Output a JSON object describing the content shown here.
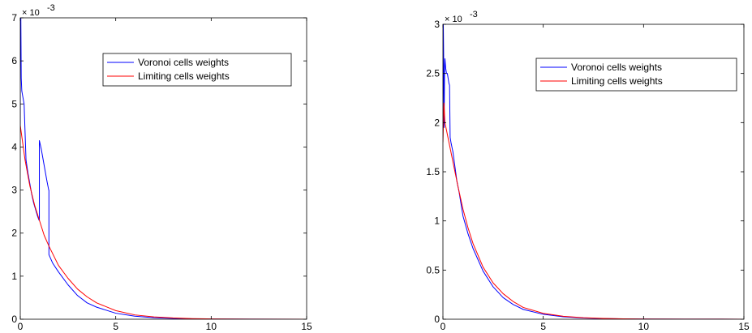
{
  "chart_data": [
    {
      "type": "line",
      "title": "",
      "xlabel": "",
      "ylabel": "",
      "exponent_label": "× 10",
      "exponent_power": "-3",
      "xlim": [
        0,
        15
      ],
      "ylim": [
        0,
        7
      ],
      "xticks": [
        0,
        5,
        10,
        15
      ],
      "yticks": [
        0,
        1,
        2,
        3,
        4,
        5,
        6,
        7
      ],
      "x_tick_labels": [
        "0",
        "5",
        "10",
        "15"
      ],
      "y_tick_labels": [
        "0",
        "1",
        "2",
        "3",
        "4",
        "5",
        "6",
        "7"
      ],
      "grid": false,
      "legend_position": "top-right",
      "series": [
        {
          "name": "Voronoi cells weights",
          "color": "#0000ff",
          "x": [
            0,
            0,
            0.03,
            0.05,
            0.08,
            0.12,
            0.2,
            0.3,
            0.4,
            0.5,
            0.6,
            0.7,
            0.8,
            0.9,
            0.98,
            1.0,
            1.0,
            1.1,
            1.2,
            1.3,
            1.4,
            1.49,
            1.5,
            1.5,
            1.7,
            2.0,
            2.5,
            3.0,
            3.5,
            4.0,
            5.0,
            6.0,
            7.0,
            8.0,
            9.0,
            10.0,
            12.0,
            15.0
          ],
          "y": [
            4.5,
            7.0,
            7.0,
            5.6,
            5.3,
            5.2,
            5.0,
            3.7,
            3.4,
            3.15,
            2.9,
            2.7,
            2.55,
            2.4,
            2.3,
            2.3,
            4.15,
            3.95,
            3.7,
            3.45,
            3.2,
            3.0,
            3.0,
            1.5,
            1.3,
            1.1,
            0.8,
            0.55,
            0.38,
            0.28,
            0.14,
            0.07,
            0.035,
            0.02,
            0.01,
            0.005,
            0.002,
            0.001
          ]
        },
        {
          "name": "Limiting cells weights",
          "color": "#ff0000",
          "x": [
            0,
            0.25,
            0.5,
            0.75,
            1.0,
            1.25,
            1.5,
            2.0,
            2.5,
            3.0,
            3.5,
            4.0,
            5.0,
            6.0,
            7.0,
            8.0,
            9.0,
            10.0,
            12.0,
            15.0
          ],
          "y": [
            4.5,
            3.7,
            3.1,
            2.65,
            2.3,
            1.95,
            1.7,
            1.25,
            0.95,
            0.7,
            0.52,
            0.38,
            0.2,
            0.1,
            0.055,
            0.03,
            0.015,
            0.008,
            0.003,
            0.001
          ]
        }
      ]
    },
    {
      "type": "line",
      "title": "",
      "xlabel": "",
      "ylabel": "",
      "exponent_label": "× 10",
      "exponent_power": "-3",
      "xlim": [
        0,
        15
      ],
      "ylim": [
        0,
        3
      ],
      "xticks": [
        0,
        5,
        10,
        15
      ],
      "yticks": [
        0,
        0.5,
        1,
        1.5,
        2,
        2.5,
        3
      ],
      "x_tick_labels": [
        "0",
        "5",
        "10",
        "15"
      ],
      "y_tick_labels": [
        "0",
        "0.5",
        "1",
        "1.5",
        "2",
        "2.5",
        "3"
      ],
      "grid": false,
      "legend_position": "top-right",
      "series": [
        {
          "name": "Voronoi cells weights",
          "color": "#0000ff",
          "x": [
            0,
            0.02,
            0.04,
            0.06,
            0.08,
            0.1,
            0.14,
            0.18,
            0.22,
            0.26,
            0.3,
            0.33,
            0.36,
            0.4,
            0.45,
            0.5,
            0.6,
            0.7,
            0.8,
            1.0,
            1.25,
            1.5,
            2.0,
            2.5,
            3.0,
            3.5,
            4.0,
            5.0,
            6.0,
            7.0,
            8.0,
            9.0,
            10.0,
            12.0,
            15.0
          ],
          "y": [
            1.8,
            3.0,
            2.6,
            1.95,
            2.5,
            2.65,
            2.55,
            2.5,
            2.5,
            2.45,
            2.4,
            2.38,
            1.85,
            1.8,
            1.75,
            1.7,
            1.55,
            1.4,
            1.3,
            1.05,
            0.87,
            0.72,
            0.49,
            0.33,
            0.22,
            0.15,
            0.1,
            0.05,
            0.025,
            0.012,
            0.006,
            0.003,
            0.002,
            0.001,
            0.0005
          ]
        },
        {
          "name": "Limiting cells weights",
          "color": "#ff0000",
          "x": [
            0,
            0.05,
            0.1,
            0.25,
            0.5,
            0.75,
            1.0,
            1.25,
            1.5,
            2.0,
            2.5,
            3.0,
            3.5,
            4.0,
            5.0,
            6.0,
            7.0,
            8.0,
            9.0,
            10.0,
            12.0,
            15.0
          ],
          "y": [
            1.8,
            2.2,
            2.0,
            1.85,
            1.6,
            1.35,
            1.12,
            0.93,
            0.77,
            0.53,
            0.37,
            0.26,
            0.18,
            0.12,
            0.06,
            0.03,
            0.015,
            0.008,
            0.004,
            0.002,
            0.001,
            0.0005
          ]
        }
      ]
    }
  ]
}
